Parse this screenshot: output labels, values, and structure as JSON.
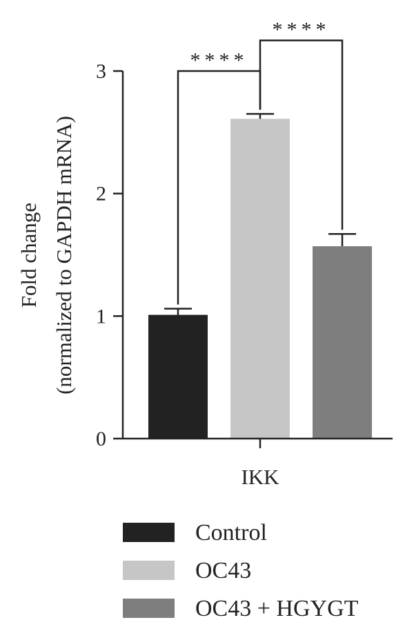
{
  "chart_data": {
    "type": "bar",
    "categories": [
      "IKK"
    ],
    "series": [
      {
        "name": "Control",
        "value": 1.01,
        "error": 0.05,
        "color": "#222222"
      },
      {
        "name": "OC43",
        "value": 2.61,
        "error": 0.04,
        "color": "#c6c6c6"
      },
      {
        "name": "OC43 + HGYGT",
        "value": 1.57,
        "error": 0.1,
        "color": "#7e7e7e"
      }
    ],
    "ylabel_line1": "Fold change",
    "ylabel_line2": "(normalized to GAPDH mRNA)",
    "xlabel": "",
    "ylim": [
      0,
      3
    ],
    "yticks": [
      0,
      1,
      2,
      3
    ],
    "significance": [
      {
        "from": "Control",
        "to": "OC43",
        "label": "****"
      },
      {
        "from": "OC43",
        "to": "OC43 + HGYGT",
        "label": "****"
      }
    ],
    "legend_position": "bottom",
    "grid": false
  }
}
